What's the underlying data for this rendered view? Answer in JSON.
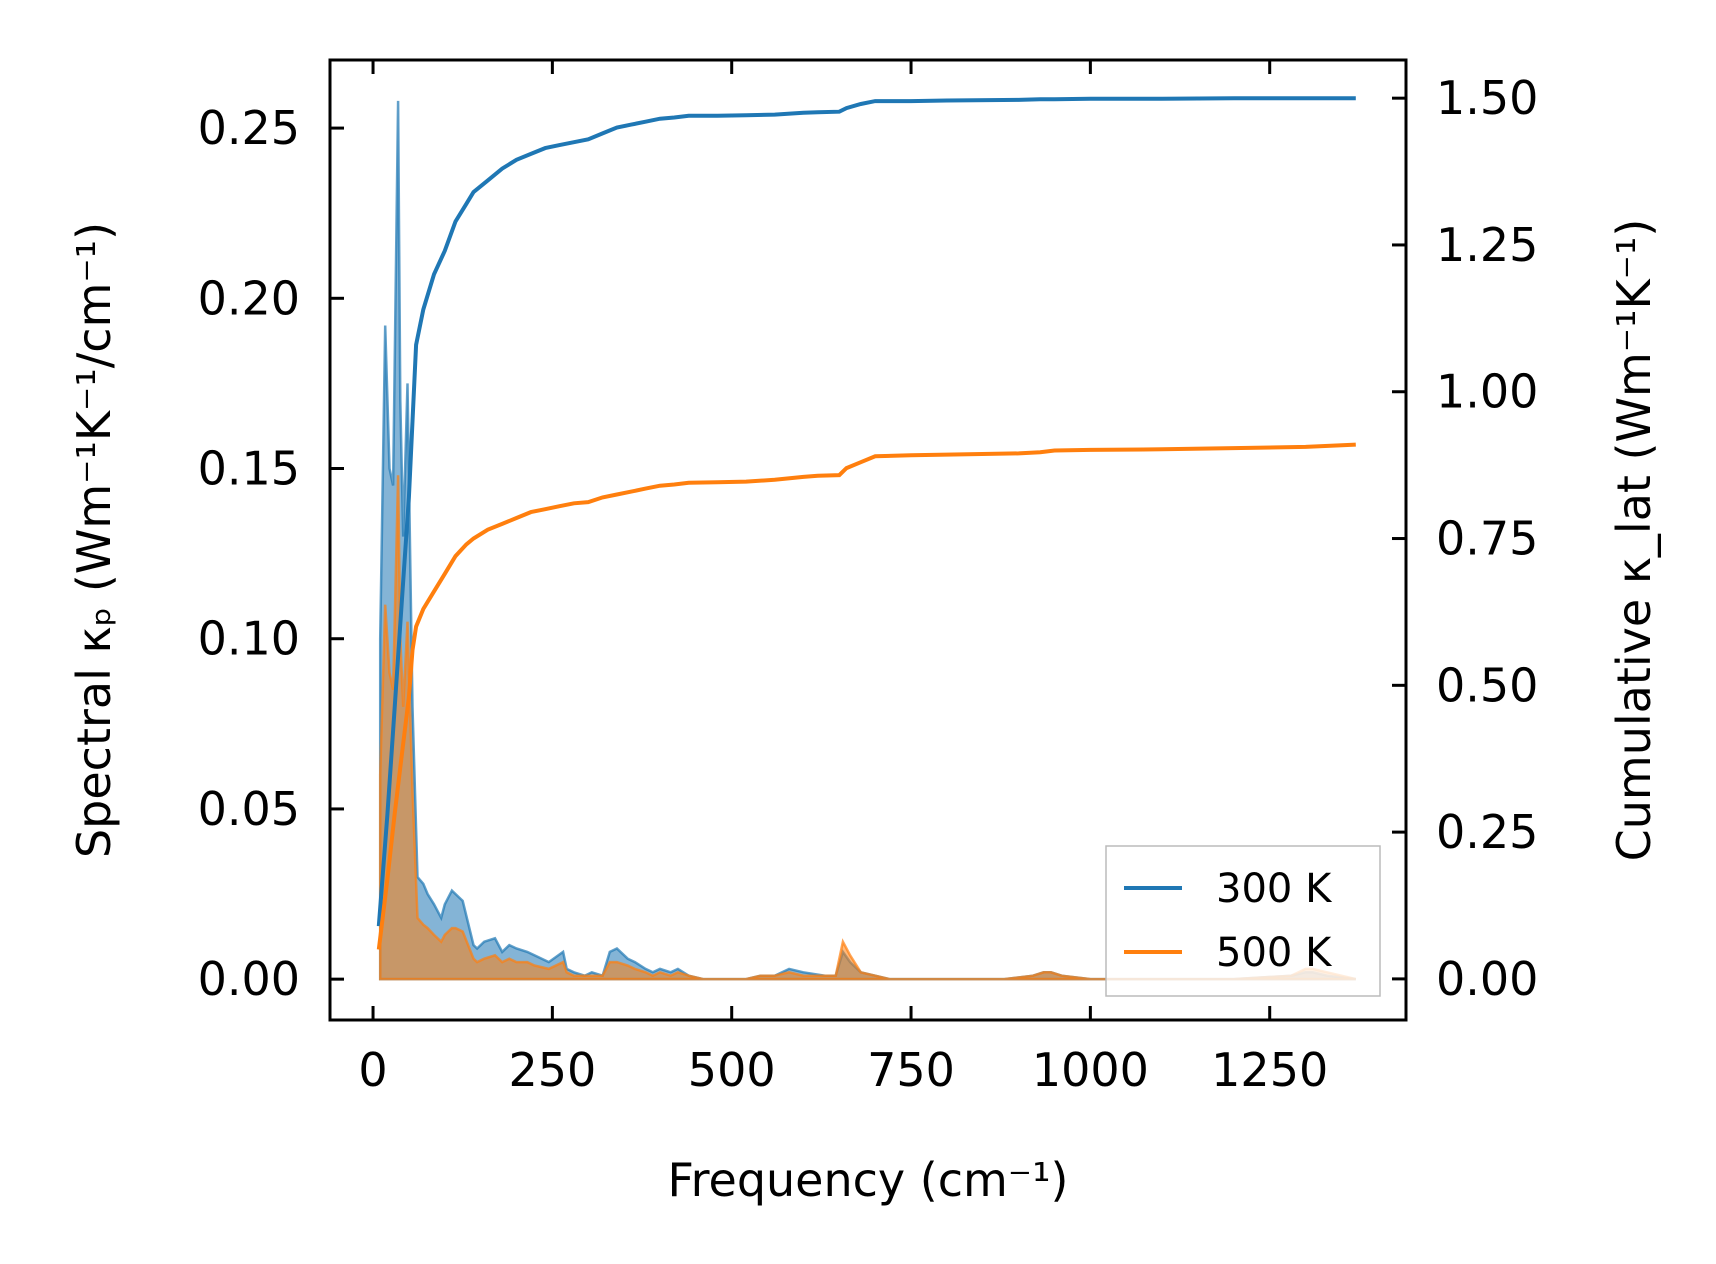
{
  "chart_data": {
    "type": "line",
    "xlabel": "Frequency (cm⁻¹)",
    "ylabel_left": "Spectral κₚ (Wm⁻¹K⁻¹/cm⁻¹)",
    "ylabel_right": "Cumulative κ_lat (Wm⁻¹K⁻¹)",
    "xlim": [
      -60,
      1440
    ],
    "ylim_left": [
      -0.012,
      0.27
    ],
    "ylim_right": [
      -0.07,
      1.565
    ],
    "xticks": [
      0,
      250,
      500,
      750,
      1000,
      1250
    ],
    "xtick_labels": [
      "0",
      "250",
      "500",
      "750",
      "1000",
      "1250"
    ],
    "yticks_left": [
      0,
      0.05,
      0.1,
      0.15,
      0.2,
      0.25
    ],
    "ytick_labels_left": [
      "0.00",
      "0.05",
      "0.10",
      "0.15",
      "0.20",
      "0.25"
    ],
    "yticks_right": [
      0,
      0.25,
      0.5,
      0.75,
      1.0,
      1.25,
      1.5
    ],
    "ytick_labels_right": [
      "0.00",
      "0.25",
      "0.50",
      "0.75",
      "1.00",
      "1.25",
      "1.50"
    ],
    "grid": false,
    "legend_position": "lower-right",
    "colors": {
      "s300": "#1f77b4",
      "s500": "#ff7f0e"
    },
    "spectral_x": [
      10,
      17,
      23,
      28,
      35,
      38,
      42,
      48,
      55,
      62,
      70,
      76,
      85,
      95,
      100,
      110,
      115,
      125,
      140,
      145,
      155,
      170,
      180,
      190,
      200,
      215,
      225,
      245,
      265,
      270,
      280,
      295,
      305,
      320,
      330,
      340,
      355,
      365,
      380,
      390,
      400,
      415,
      425,
      440,
      460,
      500,
      520,
      540,
      560,
      580,
      600,
      630,
      645,
      655,
      665,
      680,
      700,
      720,
      800,
      880,
      920,
      935,
      945,
      960,
      1000,
      1100,
      1200,
      1280,
      1300,
      1310,
      1330,
      1370
    ],
    "series": [
      {
        "name": "300 K",
        "spectral": [
          0.1,
          0.192,
          0.15,
          0.145,
          0.258,
          0.17,
          0.13,
          0.175,
          0.08,
          0.03,
          0.028,
          0.025,
          0.022,
          0.018,
          0.022,
          0.026,
          0.025,
          0.023,
          0.01,
          0.009,
          0.011,
          0.012,
          0.008,
          0.01,
          0.009,
          0.008,
          0.007,
          0.005,
          0.008,
          0.003,
          0.002,
          0.001,
          0.002,
          0.001,
          0.008,
          0.009,
          0.006,
          0.005,
          0.003,
          0.002,
          0.003,
          0.002,
          0.003,
          0.001,
          0,
          0,
          0,
          0.001,
          0.001,
          0.003,
          0.002,
          0.001,
          0.001,
          0.008,
          0.005,
          0.002,
          0.001,
          0,
          0,
          0,
          0.001,
          0.002,
          0.002,
          0.001,
          0,
          0,
          0,
          0.001,
          0.002,
          0.002,
          0.001,
          0
        ],
        "cumulative_x": [
          8,
          20,
          30,
          40,
          50,
          55,
          60,
          70,
          85,
          100,
          115,
          130,
          140,
          160,
          180,
          200,
          220,
          240,
          260,
          280,
          300,
          320,
          340,
          360,
          380,
          400,
          420,
          440,
          480,
          520,
          560,
          600,
          620,
          650,
          660,
          680,
          700,
          750,
          800,
          900,
          930,
          950,
          1000,
          1100,
          1200,
          1300,
          1370
        ],
        "cumulative": [
          0.09,
          0.28,
          0.46,
          0.64,
          0.82,
          0.95,
          1.08,
          1.14,
          1.2,
          1.24,
          1.29,
          1.32,
          1.34,
          1.36,
          1.38,
          1.395,
          1.405,
          1.415,
          1.42,
          1.425,
          1.43,
          1.44,
          1.45,
          1.455,
          1.46,
          1.465,
          1.467,
          1.47,
          1.47,
          1.471,
          1.472,
          1.475,
          1.476,
          1.477,
          1.483,
          1.49,
          1.495,
          1.495,
          1.496,
          1.497,
          1.498,
          1.498,
          1.499,
          1.499,
          1.5,
          1.5,
          1.5
        ]
      },
      {
        "name": "500 K",
        "spectral": [
          0.06,
          0.11,
          0.09,
          0.085,
          0.148,
          0.1,
          0.08,
          0.105,
          0.055,
          0.018,
          0.016,
          0.015,
          0.013,
          0.011,
          0.013,
          0.015,
          0.015,
          0.014,
          0.006,
          0.005,
          0.006,
          0.007,
          0.005,
          0.006,
          0.005,
          0.005,
          0.004,
          0.003,
          0.005,
          0.002,
          0.001,
          0.001,
          0.001,
          0.001,
          0.005,
          0.005,
          0.004,
          0.003,
          0.002,
          0.001,
          0.002,
          0.001,
          0.002,
          0.001,
          0,
          0,
          0,
          0.001,
          0.001,
          0.002,
          0.001,
          0.001,
          0.001,
          0.011,
          0.007,
          0.002,
          0.001,
          0,
          0,
          0,
          0.001,
          0.002,
          0.002,
          0.001,
          0,
          0,
          0,
          0.001,
          0.003,
          0.003,
          0.002,
          0
        ],
        "cumulative_x": [
          8,
          20,
          30,
          40,
          50,
          55,
          60,
          70,
          85,
          100,
          115,
          130,
          140,
          160,
          180,
          200,
          220,
          240,
          260,
          280,
          300,
          320,
          340,
          360,
          380,
          400,
          420,
          440,
          480,
          520,
          560,
          600,
          620,
          650,
          660,
          680,
          700,
          750,
          800,
          900,
          930,
          950,
          1000,
          1100,
          1200,
          1300,
          1370
        ],
        "cumulative": [
          0.05,
          0.17,
          0.28,
          0.38,
          0.48,
          0.56,
          0.6,
          0.63,
          0.66,
          0.69,
          0.72,
          0.74,
          0.75,
          0.765,
          0.775,
          0.785,
          0.795,
          0.8,
          0.805,
          0.81,
          0.812,
          0.82,
          0.825,
          0.83,
          0.835,
          0.84,
          0.842,
          0.845,
          0.846,
          0.847,
          0.85,
          0.855,
          0.857,
          0.858,
          0.87,
          0.88,
          0.89,
          0.892,
          0.893,
          0.895,
          0.897,
          0.9,
          0.901,
          0.902,
          0.904,
          0.906,
          0.91
        ]
      }
    ]
  }
}
